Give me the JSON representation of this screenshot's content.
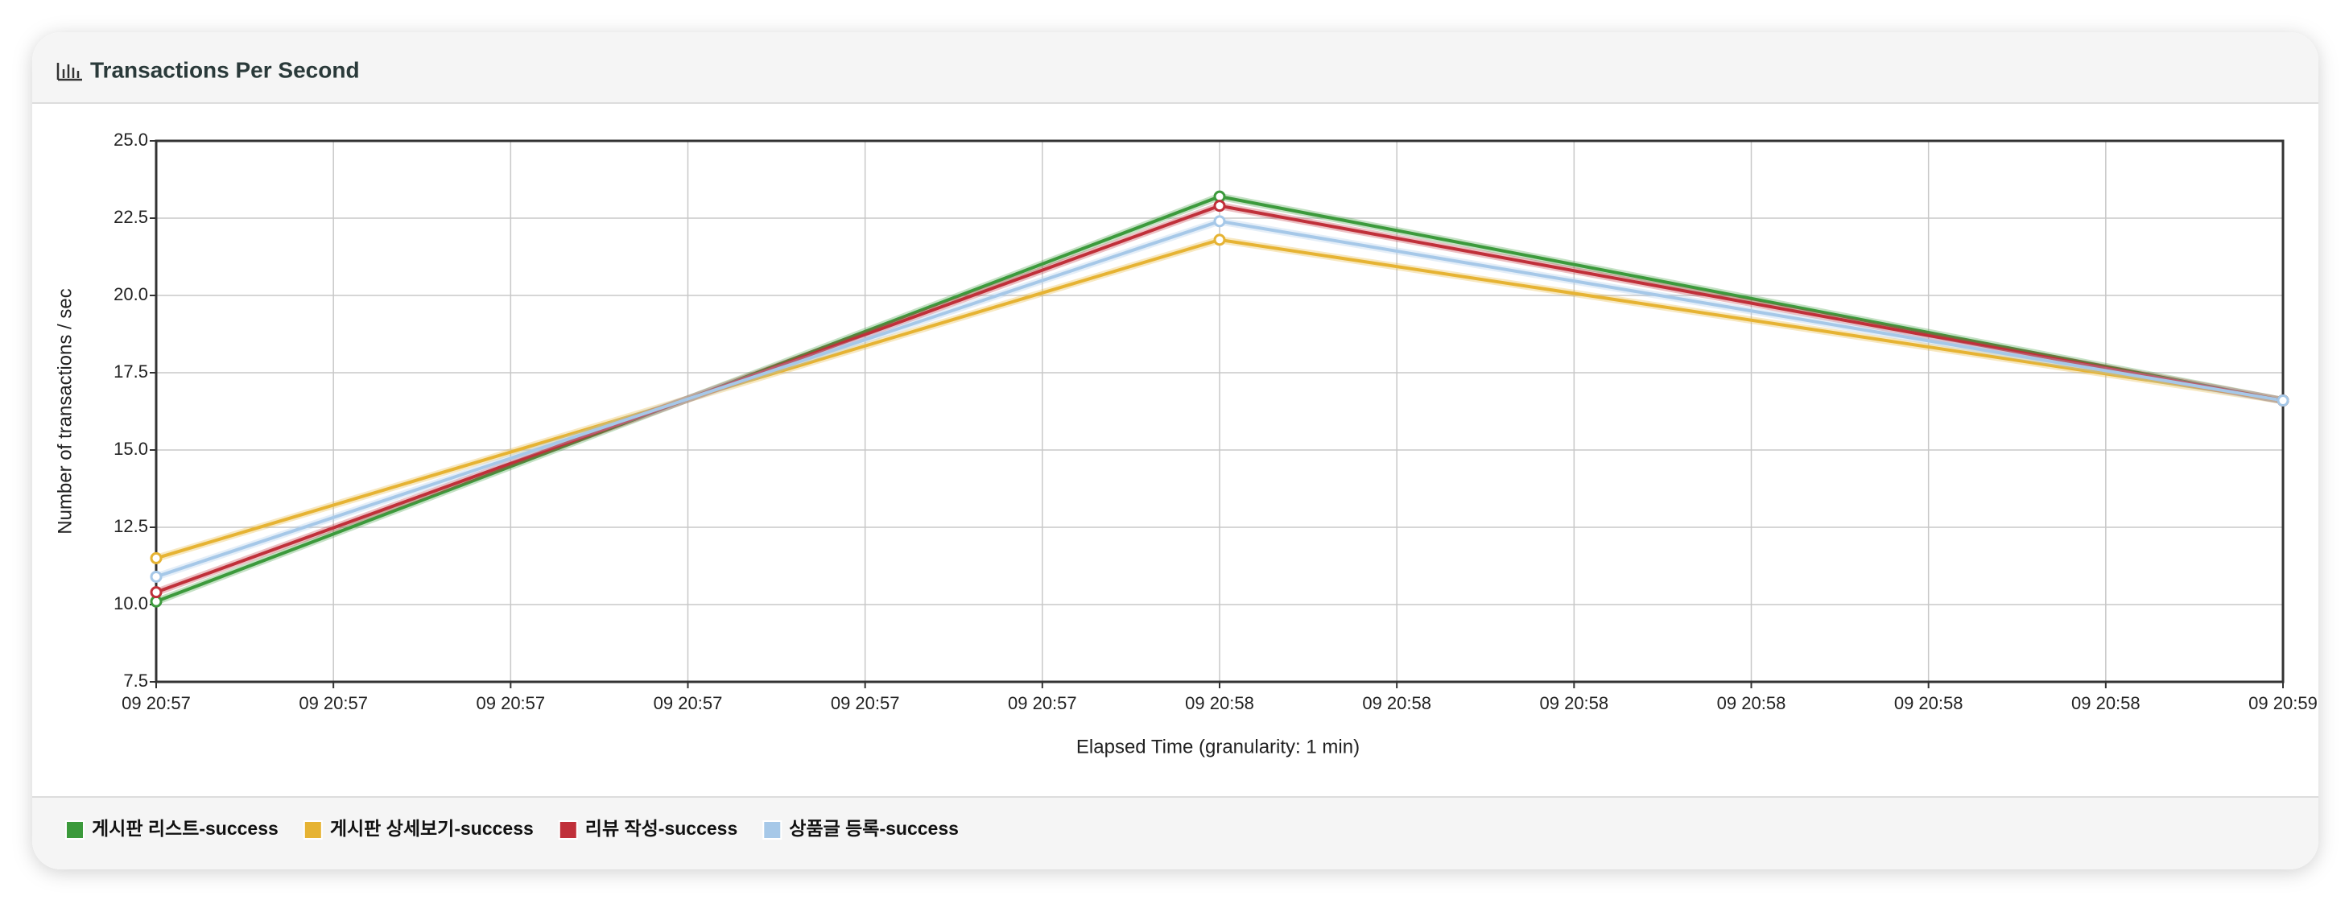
{
  "chart_data": {
    "type": "line",
    "title": "Transactions Per Second",
    "xlabel": "Elapsed Time (granularity: 1 min)",
    "ylabel": "Number of transactions / sec",
    "x": [
      "09 20:57",
      "09 20:58",
      "09 20:59"
    ],
    "xlim": [
      "09 20:57:00",
      "09 20:59:00"
    ],
    "xticks": [
      {
        "value": "09 20:57:00",
        "label": "09 20:57"
      },
      {
        "value": "09 20:57:10",
        "label": "09 20:57"
      },
      {
        "value": "09 20:57:20",
        "label": "09 20:57"
      },
      {
        "value": "09 20:57:30",
        "label": "09 20:57"
      },
      {
        "value": "09 20:57:40",
        "label": "09 20:57"
      },
      {
        "value": "09 20:57:50",
        "label": "09 20:57"
      },
      {
        "value": "09 20:58:00",
        "label": "09 20:58"
      },
      {
        "value": "09 20:58:10",
        "label": "09 20:58"
      },
      {
        "value": "09 20:58:20",
        "label": "09 20:58"
      },
      {
        "value": "09 20:58:30",
        "label": "09 20:58"
      },
      {
        "value": "09 20:58:40",
        "label": "09 20:58"
      },
      {
        "value": "09 20:58:50",
        "label": "09 20:58"
      },
      {
        "value": "09 20:59:00",
        "label": "09 20:59"
      }
    ],
    "ylim": [
      7.5,
      25
    ],
    "yticks": [
      {
        "value": 7.5,
        "label": "7.5"
      },
      {
        "value": 10,
        "label": "10.0"
      },
      {
        "value": 12.5,
        "label": "12.5"
      },
      {
        "value": 15,
        "label": "15.0"
      },
      {
        "value": 17.5,
        "label": "17.5"
      },
      {
        "value": 20,
        "label": "20.0"
      },
      {
        "value": 22.5,
        "label": "22.5"
      },
      {
        "value": 25,
        "label": "25.0"
      }
    ],
    "grid": true,
    "legend": "bottom",
    "series": [
      {
        "name": "게시판 리스트-success",
        "color": "#3c9a3c",
        "values": [
          10.1,
          23.2,
          16.6
        ]
      },
      {
        "name": "게시판 상세보기-success",
        "color": "#e6b333",
        "values": [
          11.5,
          21.8,
          16.6
        ]
      },
      {
        "name": "리뷰 작성-success",
        "color": "#c0303a",
        "values": [
          10.4,
          22.9,
          16.6
        ]
      },
      {
        "name": "상품글 등록-success",
        "color": "#a6c8e8",
        "values": [
          10.9,
          22.4,
          16.6
        ]
      }
    ]
  }
}
